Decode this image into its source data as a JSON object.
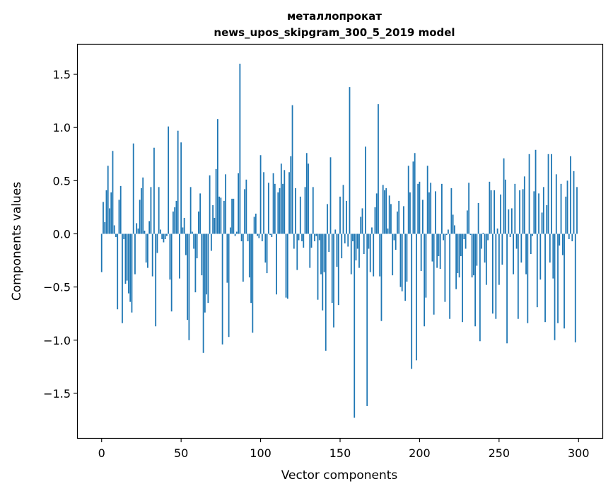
{
  "chart_data": {
    "type": "bar",
    "title_line1": "металлопрокат",
    "title_line2": "news_upos_skipgram_300_5_2019 model",
    "xlabel": "Vector components",
    "ylabel": "Components values",
    "xlim": [
      -15,
      315
    ],
    "ylim": [
      -1.92,
      1.78
    ],
    "xticks": [
      0,
      50,
      100,
      150,
      200,
      250,
      300
    ],
    "xtick_labels": [
      "0",
      "50",
      "100",
      "150",
      "200",
      "250",
      "300"
    ],
    "yticks": [
      -1.5,
      -1.0,
      -0.5,
      0.0,
      0.5,
      1.0,
      1.5
    ],
    "ytick_labels": [
      "−1.5",
      "−1.0",
      "−0.5",
      "0.0",
      "0.5",
      "1.0",
      "1.5"
    ],
    "bar_color": "#1f77b4",
    "values": [
      -0.36,
      0.3,
      0.11,
      0.41,
      0.64,
      0.24,
      0.39,
      0.78,
      0.08,
      -0.03,
      -0.71,
      0.32,
      0.45,
      -0.84,
      -0.05,
      -0.47,
      -0.44,
      -0.56,
      -0.64,
      -0.74,
      0.85,
      -0.38,
      0.1,
      0.05,
      0.32,
      0.43,
      0.53,
      0.03,
      -0.27,
      -0.32,
      0.12,
      0.44,
      -0.4,
      0.81,
      -0.87,
      -0.18,
      0.44,
      0.04,
      -0.05,
      -0.08,
      -0.05,
      -0.02,
      1.01,
      -0.43,
      -0.73,
      0.21,
      0.25,
      0.31,
      0.97,
      -0.42,
      0.86,
      0.06,
      0.15,
      -0.2,
      -0.81,
      -1.0,
      0.44,
      0.02,
      -0.14,
      -0.55,
      -0.23,
      0.21,
      0.38,
      -0.39,
      -1.12,
      -0.74,
      -0.57,
      -0.65,
      0.55,
      -0.16,
      0.27,
      0.15,
      0.61,
      1.08,
      0.35,
      0.34,
      -1.04,
      0.31,
      0.56,
      -0.46,
      -0.97,
      0.06,
      0.33,
      0.33,
      -0.02,
      0.02,
      0.57,
      1.6,
      -0.07,
      -0.45,
      0.42,
      0.51,
      -0.07,
      -0.41,
      -0.65,
      -0.93,
      0.16,
      0.19,
      -0.02,
      -0.04,
      0.74,
      -0.07,
      0.58,
      -0.27,
      -0.37,
      0.48,
      -0.01,
      -0.03,
      0.57,
      0.47,
      -0.57,
      0.39,
      0.43,
      0.66,
      0.47,
      0.6,
      -0.6,
      -0.61,
      0.58,
      0.73,
      1.21,
      -0.14,
      0.43,
      -0.34,
      -0.06,
      0.35,
      -0.07,
      -0.13,
      0.44,
      0.76,
      0.66,
      -0.32,
      -0.13,
      0.44,
      -0.07,
      -0.02,
      -0.62,
      -0.06,
      -0.38,
      -0.72,
      -0.36,
      -1.1,
      0.28,
      -0.17,
      0.72,
      -0.65,
      -0.88,
      0.04,
      -0.31,
      -0.67,
      0.35,
      -0.23,
      0.46,
      -0.09,
      0.31,
      -0.12,
      1.38,
      -0.38,
      -0.07,
      -1.73,
      -0.25,
      -0.14,
      -0.32,
      0.16,
      0.24,
      -0.19,
      0.82,
      -1.62,
      -0.14,
      -0.36,
      0.06,
      -0.4,
      0.25,
      0.38,
      1.22,
      -0.4,
      -0.82,
      0.46,
      0.41,
      0.43,
      0.05,
      0.36,
      0.28,
      -0.39,
      -0.06,
      -0.15,
      0.21,
      0.31,
      -0.5,
      -0.54,
      0.26,
      -0.63,
      -0.45,
      0.64,
      0.39,
      -1.27,
      0.68,
      0.76,
      -1.19,
      0.47,
      0.49,
      -0.35,
      0.32,
      -0.87,
      -0.6,
      0.64,
      0.39,
      0.48,
      -0.26,
      -0.76,
      0.4,
      -0.32,
      -0.21,
      -0.33,
      0.47,
      -0.06,
      -0.64,
      -0.01,
      0.04,
      -0.8,
      0.43,
      0.18,
      0.08,
      -0.52,
      -0.37,
      -0.41,
      -0.21,
      -0.83,
      -0.05,
      -0.14,
      0.22,
      0.48,
      -0.01,
      -0.41,
      -0.39,
      -0.87,
      -0.3,
      0.29,
      -1.01,
      -0.14,
      0.01,
      -0.27,
      -0.48,
      -0.06,
      0.49,
      0.41,
      -0.75,
      0.41,
      -0.8,
      0.05,
      -0.48,
      0.37,
      -0.29,
      0.71,
      0.51,
      -1.03,
      0.23,
      -0.03,
      0.24,
      -0.38,
      0.47,
      -0.14,
      -0.8,
      0.41,
      -0.27,
      0.42,
      0.54,
      -0.38,
      -0.84,
      0.75,
      -0.19,
      -0.02,
      0.4,
      0.79,
      -0.69,
      0.38,
      -0.43,
      0.2,
      0.44,
      -0.83,
      0.27,
      0.75,
      -0.27,
      0.75,
      -0.42,
      -1.0,
      0.56,
      -0.84,
      -0.11,
      0.47,
      -0.2,
      -0.89,
      0.35,
      0.5,
      -0.05,
      0.73,
      -0.07,
      0.59,
      -1.02,
      0.44
    ]
  }
}
